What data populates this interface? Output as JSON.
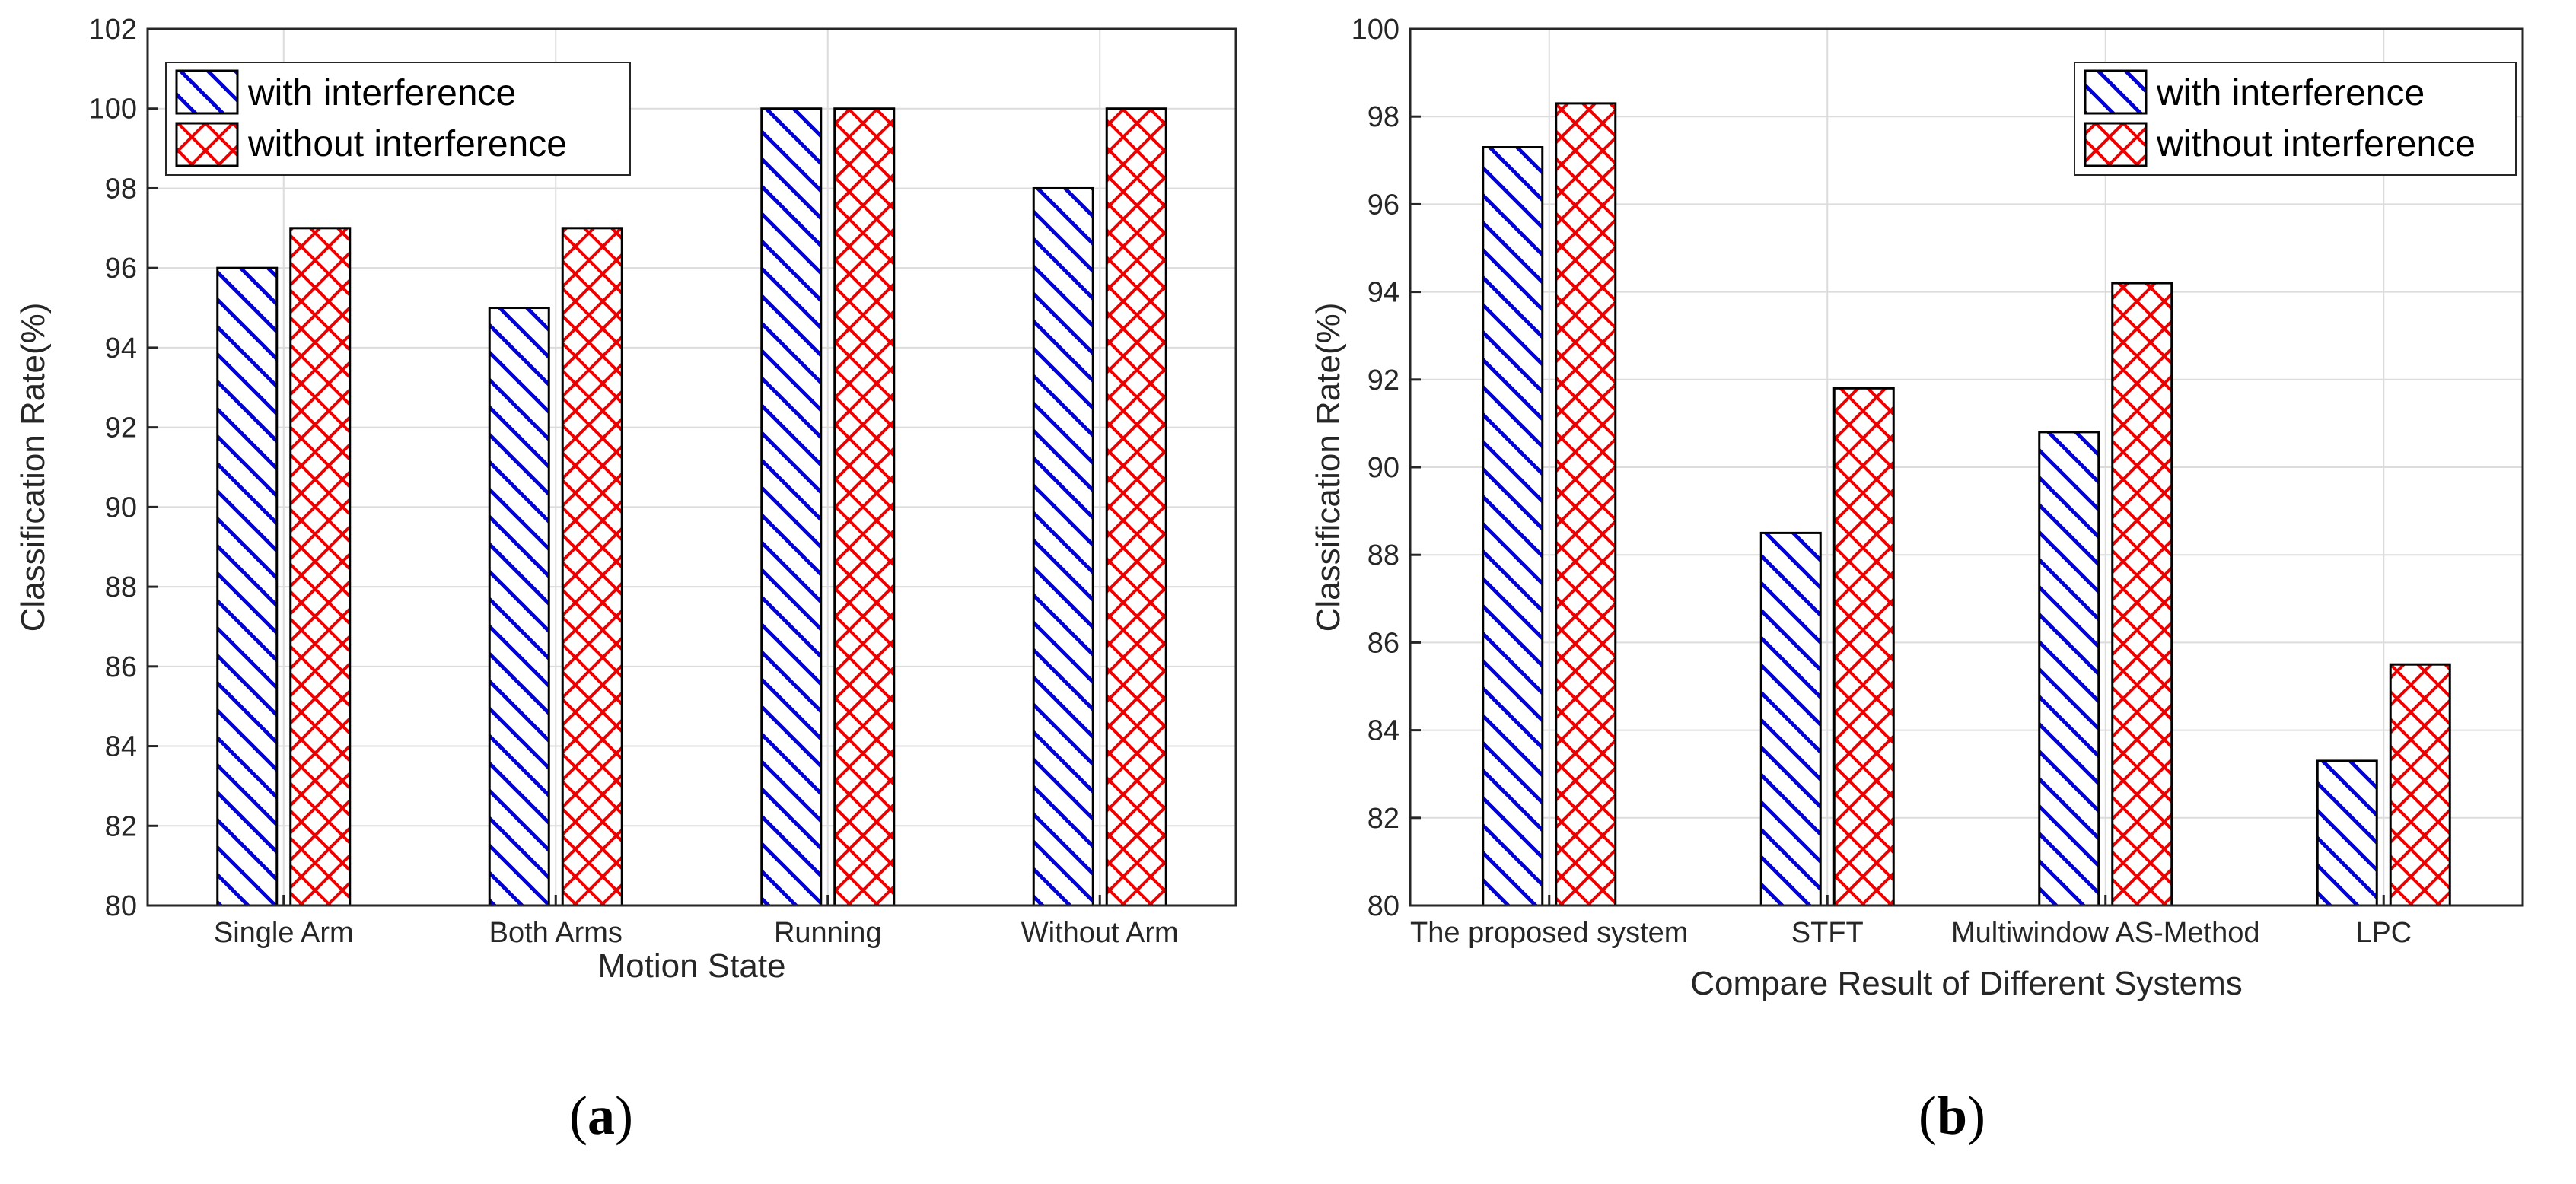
{
  "series_styles": [
    {
      "color": "#0000dd",
      "pattern": "diagonal-hatch"
    },
    {
      "color": "#ee0000",
      "pattern": "cross-hatch"
    }
  ],
  "chart_data": [
    {
      "type": "bar",
      "panel_label": "a",
      "categories": [
        "Single Arm",
        "Both Arms",
        "Running",
        "Without Arm"
      ],
      "series": [
        {
          "name": "with interference",
          "values": [
            96,
            95,
            100,
            98
          ]
        },
        {
          "name": "without interference",
          "values": [
            97,
            97,
            100,
            100
          ]
        }
      ],
      "xlabel": "Motion State",
      "ylabel": "Classification Rate(%)",
      "ylim": [
        80,
        102
      ],
      "yticks": [
        "80",
        "82",
        "84",
        "86",
        "88",
        "90",
        "92",
        "94",
        "96",
        "98",
        "100",
        "102"
      ],
      "grid": true,
      "legend_position": "top-left"
    },
    {
      "type": "bar",
      "panel_label": "b",
      "categories": [
        "The proposed system",
        "STFT",
        "Multiwindow AS-Method",
        "LPC"
      ],
      "series": [
        {
          "name": "with interference",
          "values": [
            97.3,
            88.5,
            90.8,
            83.3
          ]
        },
        {
          "name": "without interference",
          "values": [
            98.3,
            91.8,
            94.2,
            85.5
          ]
        }
      ],
      "xlabel": "Compare Result of Different Systems",
      "ylabel": "Classification Rate(%)",
      "ylim": [
        80,
        100
      ],
      "yticks": [
        "80",
        "82",
        "84",
        "86",
        "88",
        "90",
        "92",
        "94",
        "96",
        "98",
        "100"
      ],
      "grid": true,
      "legend_position": "top-right"
    }
  ]
}
